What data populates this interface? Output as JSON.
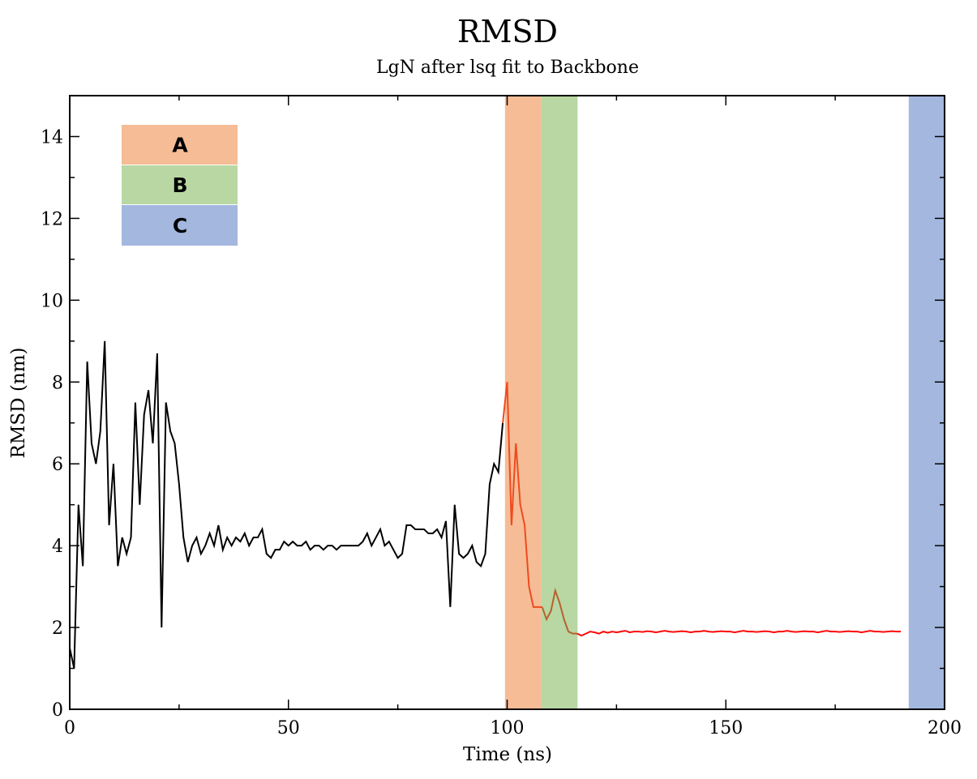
{
  "chart_data": {
    "type": "line",
    "title": "RMSD",
    "subtitle": "LgN after lsq fit to Backbone",
    "xlabel": "Time (ns)",
    "ylabel": "RMSD (nm)",
    "xlim": [
      0,
      200
    ],
    "ylim": [
      0,
      15
    ],
    "xticks": [
      "0",
      "50",
      "100",
      "150",
      "200"
    ],
    "yticks": [
      "0",
      "2",
      "4",
      "6",
      "8",
      "10",
      "12",
      "14"
    ],
    "grid": false,
    "legend_position": "top-left",
    "regions": [
      {
        "label": "A",
        "x_range": [
          99.5,
          107.8
        ],
        "color": "#f5bc96"
      },
      {
        "label": "B",
        "x_range": [
          107.8,
          116.1
        ],
        "color": "#b8d7a3"
      },
      {
        "label": "C",
        "x_range": [
          191.8,
          200
        ],
        "color": "#a3b7df"
      }
    ],
    "series": [
      {
        "name": "RMSD",
        "x_start": 0,
        "x_step": 1,
        "values": [
          1.5,
          1.0,
          5.0,
          3.5,
          8.5,
          6.5,
          6.0,
          6.8,
          9.0,
          4.5,
          6.0,
          3.5,
          4.2,
          3.8,
          4.2,
          7.5,
          5.0,
          7.2,
          7.8,
          6.5,
          8.7,
          2.0,
          7.5,
          6.8,
          6.5,
          5.5,
          4.2,
          3.6,
          4.0,
          4.2,
          3.8,
          4.0,
          4.3,
          4.0,
          4.5,
          3.9,
          4.2,
          4.0,
          4.2,
          4.1,
          4.3,
          4.0,
          4.2,
          4.2,
          4.4,
          3.8,
          3.7,
          3.9,
          3.9,
          4.1,
          4.0,
          4.1,
          4.0,
          4.0,
          4.1,
          3.9,
          4.0,
          4.0,
          3.9,
          4.0,
          4.0,
          3.9,
          4.0,
          4.0,
          4.0,
          4.0,
          4.0,
          4.1,
          4.3,
          4.0,
          4.2,
          4.4,
          4.0,
          4.1,
          3.9,
          3.7,
          3.8,
          4.5,
          4.5,
          4.4,
          4.4,
          4.4,
          4.3,
          4.3,
          4.4,
          4.2,
          4.6,
          2.5,
          5.0,
          3.8,
          3.7,
          3.8,
          4.0,
          3.6,
          3.5,
          3.8,
          5.5,
          6.0,
          5.8,
          7.0,
          8.0,
          4.5,
          6.5,
          5.0,
          4.5,
          3.0,
          2.5,
          2.5,
          2.5,
          2.2,
          2.4,
          2.9,
          2.6,
          2.2,
          1.9,
          1.85,
          1.85,
          1.8,
          1.85,
          1.9,
          1.88,
          1.85,
          1.9,
          1.87,
          1.9,
          1.88,
          1.9,
          1.92,
          1.88,
          1.9,
          1.9,
          1.89,
          1.91,
          1.9,
          1.88,
          1.9,
          1.92,
          1.9,
          1.89,
          1.9,
          1.91,
          1.9,
          1.88,
          1.9,
          1.9,
          1.92,
          1.9,
          1.89,
          1.9,
          1.91,
          1.9,
          1.9,
          1.88,
          1.9,
          1.92,
          1.9,
          1.9,
          1.89,
          1.9,
          1.91,
          1.9,
          1.88,
          1.9,
          1.9,
          1.92,
          1.9,
          1.89,
          1.9,
          1.91,
          1.9,
          1.9,
          1.88,
          1.9,
          1.92,
          1.9,
          1.9,
          1.89,
          1.9,
          1.91,
          1.9,
          1.9,
          1.88,
          1.9,
          1.92,
          1.9,
          1.9,
          1.89,
          1.9,
          1.91,
          1.9,
          1.9
        ]
      }
    ]
  }
}
